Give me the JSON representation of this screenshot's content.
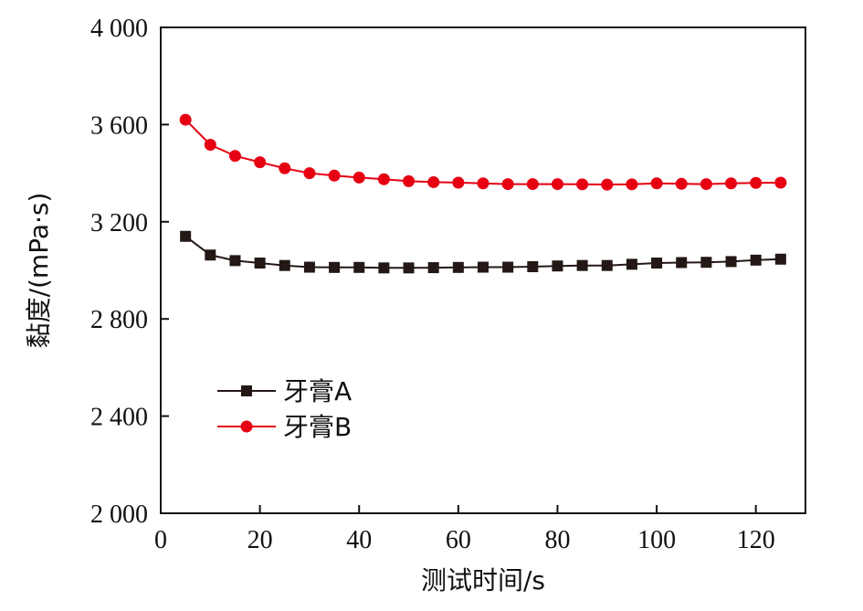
{
  "chart_data": {
    "type": "line",
    "xlabel": "测试时间/s",
    "ylabel": "黏度/(mPa·s)",
    "xlim": [
      0,
      130
    ],
    "ylim": [
      2000,
      4000
    ],
    "xticks": [
      0,
      20,
      40,
      60,
      80,
      100,
      120
    ],
    "yticks": [
      2000,
      2400,
      2800,
      3200,
      3600,
      4000
    ],
    "ytick_labels": [
      "2 000",
      "2 400",
      "2 800",
      "3 200",
      "3 600",
      "4 000"
    ],
    "grid": false,
    "legend_position": "lower-left",
    "x": [
      5,
      10,
      15,
      20,
      25,
      30,
      35,
      40,
      45,
      50,
      55,
      60,
      65,
      70,
      75,
      80,
      85,
      90,
      95,
      100,
      105,
      110,
      115,
      120,
      125
    ],
    "series": [
      {
        "name": "牙膏A",
        "color": "#231815",
        "marker": "square",
        "values": [
          3140,
          3063,
          3040,
          3030,
          3020,
          3013,
          3012,
          3012,
          3010,
          3010,
          3011,
          3012,
          3013,
          3013,
          3015,
          3018,
          3020,
          3020,
          3025,
          3030,
          3032,
          3033,
          3036,
          3042,
          3046
        ]
      },
      {
        "name": "牙膏B",
        "color": "#e60012",
        "marker": "circle",
        "values": [
          3620,
          3517,
          3471,
          3445,
          3420,
          3400,
          3390,
          3382,
          3375,
          3367,
          3363,
          3361,
          3358,
          3355,
          3355,
          3355,
          3354,
          3353,
          3354,
          3358,
          3356,
          3355,
          3358,
          3360,
          3361
        ]
      }
    ]
  }
}
